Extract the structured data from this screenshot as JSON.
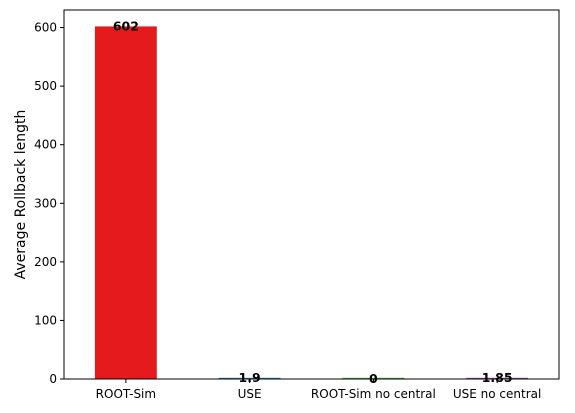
{
  "chart_data": {
    "type": "bar",
    "title": "",
    "xlabel": "",
    "ylabel": "Average Rollback length",
    "ylim": [
      0,
      630
    ],
    "yticks": [
      0,
      100,
      200,
      300,
      400,
      500,
      600
    ],
    "grid": false,
    "categories": [
      "ROOT-Sim",
      "USE",
      "ROOT-Sim no central",
      "USE no central"
    ],
    "values": [
      602,
      1.9,
      0,
      1.85
    ],
    "data_labels": [
      "602",
      "1.9",
      "0",
      "1.85"
    ],
    "colors": [
      "#e41a1c",
      "#377eb8",
      "#4daf4a",
      "#984ea3"
    ]
  }
}
